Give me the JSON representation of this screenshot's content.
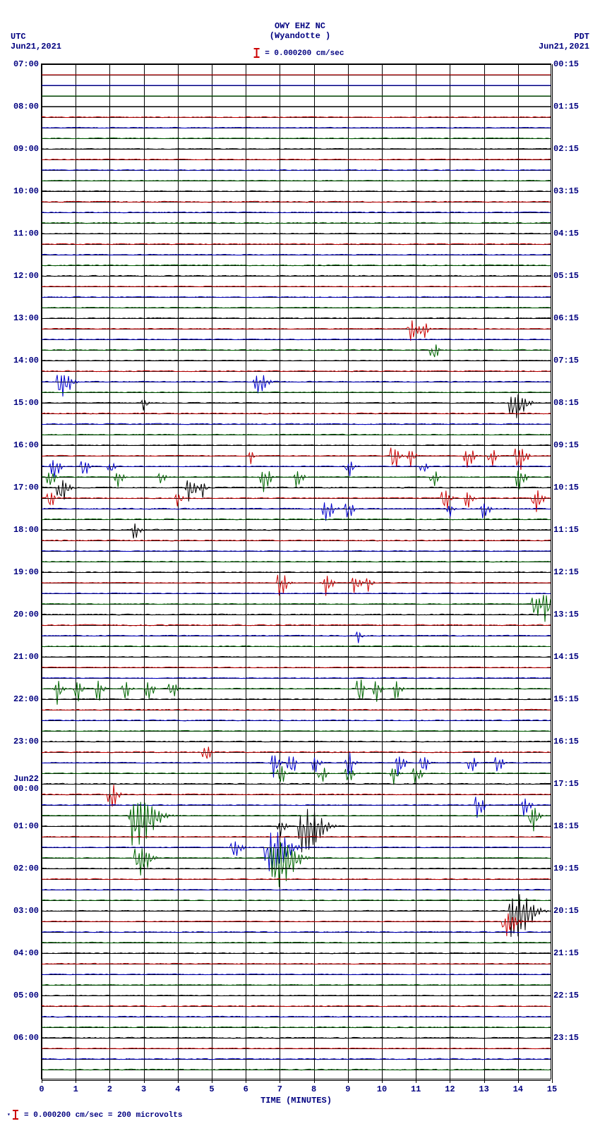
{
  "header": {
    "station_line1": "OWY EHZ NC",
    "station_line2": "(Wyandotte )",
    "utc_label": "UTC",
    "utc_date": "Jun21,2021",
    "pdt_label": "PDT",
    "pdt_date": "Jun21,2021",
    "scale_text": "= 0.000200 cm/sec"
  },
  "footer": {
    "note": "= 0.000200 cm/sec =    200 microvolts"
  },
  "colors": {
    "text": "#000080",
    "grid": "#000000",
    "background": "#ffffff",
    "trace_black": "#000000",
    "trace_red": "#cc0000",
    "trace_blue": "#0000cc",
    "trace_green": "#006600"
  },
  "plot": {
    "x_min": 0,
    "x_max": 15,
    "x_tick_step": 1,
    "x_title": "TIME (MINUTES)",
    "rows": 96,
    "utc_labels": [
      {
        "row": 0,
        "text": "07:00"
      },
      {
        "row": 4,
        "text": "08:00"
      },
      {
        "row": 8,
        "text": "09:00"
      },
      {
        "row": 12,
        "text": "10:00"
      },
      {
        "row": 16,
        "text": "11:00"
      },
      {
        "row": 20,
        "text": "12:00"
      },
      {
        "row": 24,
        "text": "13:00"
      },
      {
        "row": 28,
        "text": "14:00"
      },
      {
        "row": 32,
        "text": "15:00"
      },
      {
        "row": 36,
        "text": "16:00"
      },
      {
        "row": 40,
        "text": "17:00"
      },
      {
        "row": 44,
        "text": "18:00"
      },
      {
        "row": 48,
        "text": "19:00"
      },
      {
        "row": 52,
        "text": "20:00"
      },
      {
        "row": 56,
        "text": "21:00"
      },
      {
        "row": 60,
        "text": "22:00"
      },
      {
        "row": 64,
        "text": "23:00"
      },
      {
        "row": 68,
        "text": "Jun22\n00:00"
      },
      {
        "row": 72,
        "text": "01:00"
      },
      {
        "row": 76,
        "text": "02:00"
      },
      {
        "row": 80,
        "text": "03:00"
      },
      {
        "row": 84,
        "text": "04:00"
      },
      {
        "row": 88,
        "text": "05:00"
      },
      {
        "row": 92,
        "text": "06:00"
      }
    ],
    "pdt_labels": [
      {
        "row": 0,
        "text": "00:15"
      },
      {
        "row": 4,
        "text": "01:15"
      },
      {
        "row": 8,
        "text": "02:15"
      },
      {
        "row": 12,
        "text": "03:15"
      },
      {
        "row": 16,
        "text": "04:15"
      },
      {
        "row": 20,
        "text": "05:15"
      },
      {
        "row": 24,
        "text": "06:15"
      },
      {
        "row": 28,
        "text": "07:15"
      },
      {
        "row": 32,
        "text": "08:15"
      },
      {
        "row": 36,
        "text": "09:15"
      },
      {
        "row": 40,
        "text": "10:15"
      },
      {
        "row": 44,
        "text": "11:15"
      },
      {
        "row": 48,
        "text": "12:15"
      },
      {
        "row": 52,
        "text": "13:15"
      },
      {
        "row": 56,
        "text": "14:15"
      },
      {
        "row": 60,
        "text": "15:15"
      },
      {
        "row": 64,
        "text": "16:15"
      },
      {
        "row": 68,
        "text": "17:15"
      },
      {
        "row": 72,
        "text": "18:15"
      },
      {
        "row": 76,
        "text": "19:15"
      },
      {
        "row": 80,
        "text": "20:15"
      },
      {
        "row": 84,
        "text": "21:15"
      },
      {
        "row": 88,
        "text": "22:15"
      },
      {
        "row": 92,
        "text": "23:15"
      }
    ],
    "color_cycle": [
      "trace_black",
      "trace_red",
      "trace_blue",
      "trace_green"
    ],
    "events": {
      "25": [
        {
          "x": 10.8,
          "amp": 18,
          "w": 0.6
        },
        {
          "x": 11.2,
          "amp": 14,
          "w": 0.4
        }
      ],
      "27": [
        {
          "x": 11.5,
          "amp": 16,
          "w": 0.4
        }
      ],
      "30": [
        {
          "x": 0.5,
          "amp": 20,
          "w": 0.8
        },
        {
          "x": 6.3,
          "amp": 18,
          "w": 0.7
        }
      ],
      "32": [
        {
          "x": 3.0,
          "amp": 10,
          "w": 0.3
        },
        {
          "x": 13.8,
          "amp": 22,
          "w": 1.0
        }
      ],
      "37": [
        {
          "x": 6.1,
          "amp": 12,
          "w": 0.3
        },
        {
          "x": 10.3,
          "amp": 20,
          "w": 0.5
        },
        {
          "x": 10.8,
          "amp": 16,
          "w": 0.4
        },
        {
          "x": 12.5,
          "amp": 18,
          "w": 0.5
        },
        {
          "x": 13.2,
          "amp": 16,
          "w": 0.4
        },
        {
          "x": 14.0,
          "amp": 20,
          "w": 0.6
        }
      ],
      "38": [
        {
          "x": 0.3,
          "amp": 18,
          "w": 0.5
        },
        {
          "x": 1.2,
          "amp": 14,
          "w": 0.4
        },
        {
          "x": 2.0,
          "amp": 12,
          "w": 0.3
        },
        {
          "x": 9.0,
          "amp": 14,
          "w": 0.4
        },
        {
          "x": 11.2,
          "amp": 12,
          "w": 0.3
        }
      ],
      "39": [
        {
          "x": 0.2,
          "amp": 16,
          "w": 0.4
        },
        {
          "x": 2.2,
          "amp": 14,
          "w": 0.4
        },
        {
          "x": 3.5,
          "amp": 10,
          "w": 0.3
        },
        {
          "x": 6.5,
          "amp": 22,
          "w": 0.5
        },
        {
          "x": 7.5,
          "amp": 14,
          "w": 0.4
        },
        {
          "x": 11.5,
          "amp": 14,
          "w": 0.4
        },
        {
          "x": 14.0,
          "amp": 18,
          "w": 0.5
        }
      ],
      "40": [
        {
          "x": 0.5,
          "amp": 20,
          "w": 0.6
        },
        {
          "x": 4.3,
          "amp": 18,
          "w": 0.5
        },
        {
          "x": 4.7,
          "amp": 14,
          "w": 0.3
        }
      ],
      "41": [
        {
          "x": 0.2,
          "amp": 14,
          "w": 0.4
        },
        {
          "x": 4.0,
          "amp": 12,
          "w": 0.3
        },
        {
          "x": 11.8,
          "amp": 18,
          "w": 0.5
        },
        {
          "x": 12.5,
          "amp": 14,
          "w": 0.4
        },
        {
          "x": 14.5,
          "amp": 20,
          "w": 0.5
        }
      ],
      "42": [
        {
          "x": 8.3,
          "amp": 18,
          "w": 0.6
        },
        {
          "x": 9.0,
          "amp": 14,
          "w": 0.4
        },
        {
          "x": 12.0,
          "amp": 12,
          "w": 0.3
        },
        {
          "x": 13.0,
          "amp": 14,
          "w": 0.4
        }
      ],
      "44": [
        {
          "x": 2.7,
          "amp": 14,
          "w": 0.4
        }
      ],
      "49": [
        {
          "x": 7.0,
          "amp": 20,
          "w": 0.5
        },
        {
          "x": 8.3,
          "amp": 18,
          "w": 0.5
        },
        {
          "x": 9.2,
          "amp": 14,
          "w": 0.4
        },
        {
          "x": 9.6,
          "amp": 12,
          "w": 0.3
        }
      ],
      "51": [
        {
          "x": 14.5,
          "amp": 18,
          "w": 0.5
        },
        {
          "x": 14.8,
          "amp": 22,
          "w": 0.5
        }
      ],
      "54": [
        {
          "x": 9.3,
          "amp": 10,
          "w": 0.3
        }
      ],
      "59": [
        {
          "x": 0.4,
          "amp": 22,
          "w": 0.4
        },
        {
          "x": 1.0,
          "amp": 18,
          "w": 0.4
        },
        {
          "x": 1.6,
          "amp": 20,
          "w": 0.4
        },
        {
          "x": 2.4,
          "amp": 16,
          "w": 0.4
        },
        {
          "x": 3.1,
          "amp": 18,
          "w": 0.4
        },
        {
          "x": 3.8,
          "amp": 14,
          "w": 0.4
        },
        {
          "x": 9.3,
          "amp": 24,
          "w": 0.4
        },
        {
          "x": 9.8,
          "amp": 20,
          "w": 0.4
        },
        {
          "x": 10.4,
          "amp": 16,
          "w": 0.4
        }
      ],
      "65": [
        {
          "x": 4.8,
          "amp": 14,
          "w": 0.4
        }
      ],
      "66": [
        {
          "x": 6.8,
          "amp": 20,
          "w": 0.4
        },
        {
          "x": 7.3,
          "amp": 18,
          "w": 0.4
        },
        {
          "x": 8.0,
          "amp": 14,
          "w": 0.4
        },
        {
          "x": 9.0,
          "amp": 22,
          "w": 0.4
        },
        {
          "x": 10.5,
          "amp": 18,
          "w": 0.4
        },
        {
          "x": 11.2,
          "amp": 14,
          "w": 0.4
        },
        {
          "x": 12.6,
          "amp": 16,
          "w": 0.4
        },
        {
          "x": 13.4,
          "amp": 14,
          "w": 0.4
        }
      ],
      "67": [
        {
          "x": 7.0,
          "amp": 16,
          "w": 0.4
        },
        {
          "x": 8.2,
          "amp": 14,
          "w": 0.4
        },
        {
          "x": 9.0,
          "amp": 12,
          "w": 0.4
        },
        {
          "x": 10.3,
          "amp": 16,
          "w": 0.4
        },
        {
          "x": 11.0,
          "amp": 14,
          "w": 0.4
        }
      ],
      "69": [
        {
          "x": 2.0,
          "amp": 22,
          "w": 0.5
        }
      ],
      "70": [
        {
          "x": 12.8,
          "amp": 18,
          "w": 0.5
        },
        {
          "x": 14.2,
          "amp": 16,
          "w": 0.4
        }
      ],
      "71": [
        {
          "x": 2.6,
          "amp": 40,
          "w": 1.6
        },
        {
          "x": 14.4,
          "amp": 22,
          "w": 0.5
        }
      ],
      "72": [
        {
          "x": 7.0,
          "amp": 14,
          "w": 0.4
        },
        {
          "x": 7.6,
          "amp": 38,
          "w": 1.4
        }
      ],
      "74": [
        {
          "x": 5.6,
          "amp": 14,
          "w": 0.6
        },
        {
          "x": 6.6,
          "amp": 36,
          "w": 1.4
        }
      ],
      "75": [
        {
          "x": 2.8,
          "amp": 24,
          "w": 0.8
        },
        {
          "x": 6.8,
          "amp": 40,
          "w": 1.4
        }
      ],
      "80": [
        {
          "x": 13.8,
          "amp": 38,
          "w": 1.4
        }
      ],
      "81": [
        {
          "x": 13.6,
          "amp": 20,
          "w": 0.8
        }
      ]
    },
    "flat_rows": [
      0,
      1,
      2,
      3,
      4
    ]
  }
}
